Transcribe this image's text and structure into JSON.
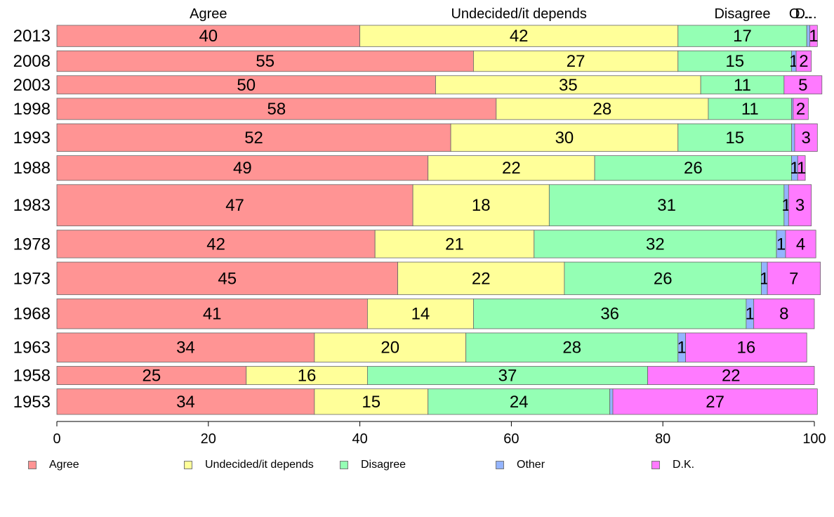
{
  "chart_data": {
    "type": "bar",
    "orientation": "horizontal",
    "stacked": true,
    "categories": [
      "2013",
      "2008",
      "2003",
      "1998",
      "1993",
      "1988",
      "1983",
      "1978",
      "1973",
      "1968",
      "1963",
      "1958",
      "1953"
    ],
    "series": [
      {
        "name": "Agree",
        "color": "#ff9494",
        "values": [
          40,
          55,
          50,
          58,
          52,
          49,
          47,
          42,
          45,
          41,
          34,
          25,
          34
        ]
      },
      {
        "name": "Undecided/it depends",
        "color": "#ffff99",
        "values": [
          42,
          27,
          35,
          28,
          30,
          22,
          18,
          21,
          22,
          14,
          20,
          16,
          15
        ]
      },
      {
        "name": "Disagree",
        "color": "#94ffb4",
        "values": [
          17,
          15,
          11,
          11,
          15,
          26,
          31,
          32,
          26,
          36,
          28,
          37,
          24
        ]
      },
      {
        "name": "Other",
        "color": "#94b4ff",
        "values": [
          0.4,
          0.6,
          0,
          0.2,
          0.4,
          0.8,
          0.6,
          1.2,
          0.8,
          1,
          1,
          0,
          0.4
        ]
      },
      {
        "name": "D.K.",
        "color": "#ff7aff",
        "values": [
          1,
          2,
          5,
          2,
          3,
          1,
          3,
          4,
          7,
          8,
          16,
          22,
          27
        ]
      }
    ],
    "value_labels": [
      [
        "40",
        "42",
        "17",
        "",
        "1"
      ],
      [
        "55",
        "27",
        "15",
        "1",
        "2"
      ],
      [
        "50",
        "35",
        "11",
        "",
        "5"
      ],
      [
        "58",
        "28",
        "11",
        "",
        "2"
      ],
      [
        "52",
        "30",
        "15",
        "",
        "3"
      ],
      [
        "49",
        "22",
        "26",
        "1",
        "1"
      ],
      [
        "47",
        "18",
        "31",
        "1",
        "3"
      ],
      [
        "42",
        "21",
        "32",
        "1",
        "4"
      ],
      [
        "45",
        "22",
        "26",
        "1",
        "7"
      ],
      [
        "41",
        "14",
        "36",
        "1",
        "8"
      ],
      [
        "34",
        "20",
        "28",
        "1",
        "16"
      ],
      [
        "25",
        "16",
        "37",
        "",
        "22"
      ],
      [
        "34",
        "15",
        "24",
        "",
        "27"
      ]
    ],
    "top_labels": [
      "Agree",
      "Undecided/it depends",
      "Disagree",
      "O...",
      "D..."
    ],
    "xlim": [
      0,
      100
    ],
    "xticks": [
      "0",
      "20",
      "40",
      "60",
      "80",
      "100"
    ],
    "bar_weights": [
      1,
      0.97,
      0.86,
      1,
      1.3,
      1.16,
      1.94,
      1.3,
      1.53,
      1.4,
      1.37,
      0.86,
      1.2
    ],
    "grid": false,
    "legend": "bottom"
  }
}
